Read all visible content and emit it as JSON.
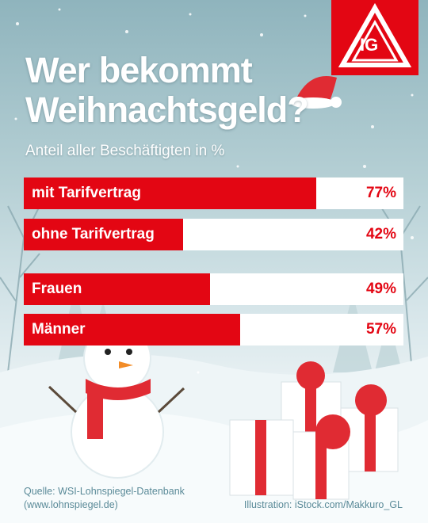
{
  "title_line1": "Wer bekommt",
  "title_line2": "Weihnachtsgeld?",
  "subtitle": "Anteil aller Beschäftigten in %",
  "colors": {
    "accent": "#e30613",
    "bar_bg": "#ffffff",
    "text": "#ffffff",
    "footer": "#5a8a98"
  },
  "logo": {
    "text": "IG",
    "name": "ig-metall-logo"
  },
  "chart_data": {
    "type": "bar",
    "orientation": "horizontal",
    "title": "Wer bekommt Weihnachtsgeld?",
    "subtitle": "Anteil aller Beschäftigten in %",
    "categories": [
      "mit Tarifvertrag",
      "ohne Tarifvertrag",
      "Frauen",
      "Männer"
    ],
    "values": [
      77,
      42,
      49,
      57
    ],
    "value_labels": [
      "77%",
      "42%",
      "49%",
      "57%"
    ],
    "xlim": [
      0,
      100
    ]
  },
  "footer": {
    "source_line1": "Quelle: WSI-Lohnspiegel-Datenbank",
    "source_line2": "(www.lohnspiegel.de)",
    "illustration": "Illustration: iStock.com/Makkuro_GL"
  }
}
